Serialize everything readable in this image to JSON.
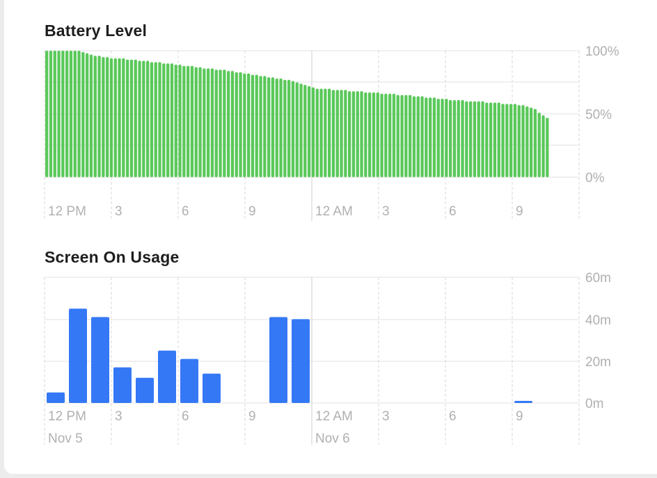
{
  "colors": {
    "battery": "#5ac85a",
    "usage": "#3478f6",
    "grid": "#e0e0e0",
    "tick_text": "#b0b0b0",
    "title": "#1d1d1f"
  },
  "chart_data": [
    {
      "type": "bar",
      "title": "Battery Level",
      "unit": "%",
      "ylim": [
        0,
        100
      ],
      "y_ticks": [
        "0%",
        "50%",
        "100%"
      ],
      "x_ticks": [
        "12 PM",
        "3",
        "6",
        "9",
        "12 AM",
        "3",
        "6",
        "9"
      ],
      "values": [
        100,
        100,
        100,
        100,
        100,
        100,
        100,
        100,
        100,
        99,
        98,
        97,
        96,
        96,
        95,
        95,
        94,
        94,
        94,
        94,
        93,
        93,
        93,
        92,
        92,
        92,
        91,
        91,
        91,
        90,
        90,
        90,
        89,
        89,
        88,
        88,
        88,
        87,
        87,
        86,
        86,
        86,
        85,
        85,
        85,
        84,
        84,
        83,
        83,
        82,
        82,
        81,
        81,
        80,
        80,
        79,
        79,
        78,
        78,
        77,
        77,
        76,
        75,
        74,
        73,
        72,
        71,
        70,
        70,
        70,
        70,
        69,
        69,
        69,
        69,
        68,
        68,
        68,
        68,
        67,
        67,
        67,
        67,
        66,
        66,
        66,
        66,
        65,
        65,
        65,
        65,
        64,
        64,
        64,
        63,
        63,
        63,
        62,
        62,
        62,
        61,
        61,
        61,
        61,
        60,
        60,
        60,
        60,
        60,
        59,
        59,
        59,
        59,
        58,
        58,
        58,
        58,
        57,
        57,
        56,
        55,
        54,
        51,
        49,
        47
      ]
    },
    {
      "type": "bar",
      "title": "Screen On Usage",
      "unit": "min",
      "ylim": [
        0,
        60
      ],
      "y_ticks": [
        "0m",
        "20m",
        "40m",
        "60m"
      ],
      "x_ticks": [
        "12 PM",
        "3",
        "6",
        "9",
        "12 AM",
        "3",
        "6",
        "9"
      ],
      "date_labels": [
        "Nov 5",
        "Nov 6"
      ],
      "values": [
        5,
        45,
        41,
        17,
        12,
        25,
        21,
        14,
        0,
        0,
        41,
        40,
        0,
        0,
        0,
        0,
        0,
        0,
        0,
        0,
        0,
        1,
        0,
        0
      ]
    }
  ]
}
